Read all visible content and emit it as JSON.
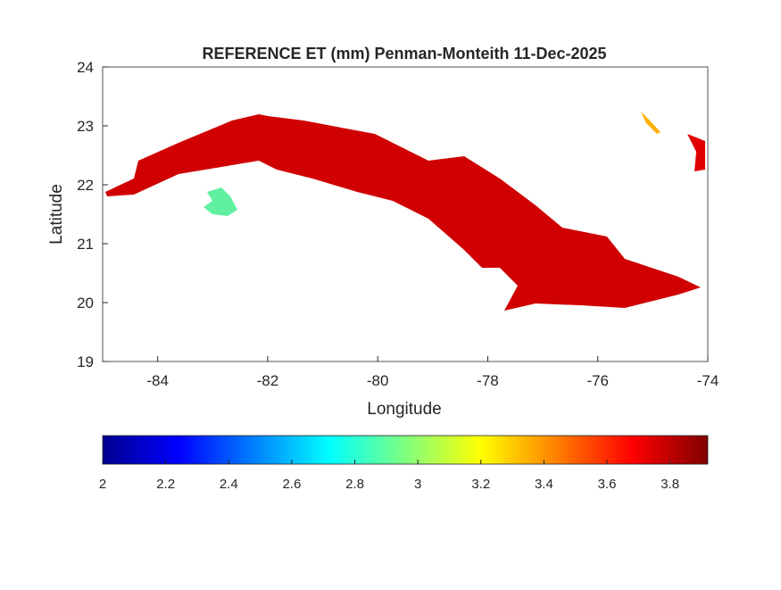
{
  "chart_data": {
    "type": "heatmap",
    "title": "REFERENCE ET (mm) Penman-Monteith 11-Dec-2025",
    "xlabel": "Longitude",
    "ylabel": "Latitude",
    "xlim": [
      -85,
      -74
    ],
    "ylim": [
      19,
      24
    ],
    "xticks": [
      -84,
      -82,
      -80,
      -78,
      -76,
      -74
    ],
    "yticks": [
      19,
      20,
      21,
      22,
      23,
      24
    ],
    "grid": false,
    "colormap": "jet",
    "colorbar": {
      "location": "bottom",
      "range": [
        2,
        3.92
      ],
      "ticks": [
        2,
        2.2,
        2.4,
        2.6,
        2.8,
        3,
        3.2,
        3.4,
        3.6,
        3.8
      ]
    },
    "regions": [
      {
        "name": "",
        "approx_value_range": [
          2.3,
          3.9
        ]
      }
    ]
  },
  "colors": {
    "low": "#00008f",
    "mid": "#7fff7f",
    "high": "#800000"
  }
}
